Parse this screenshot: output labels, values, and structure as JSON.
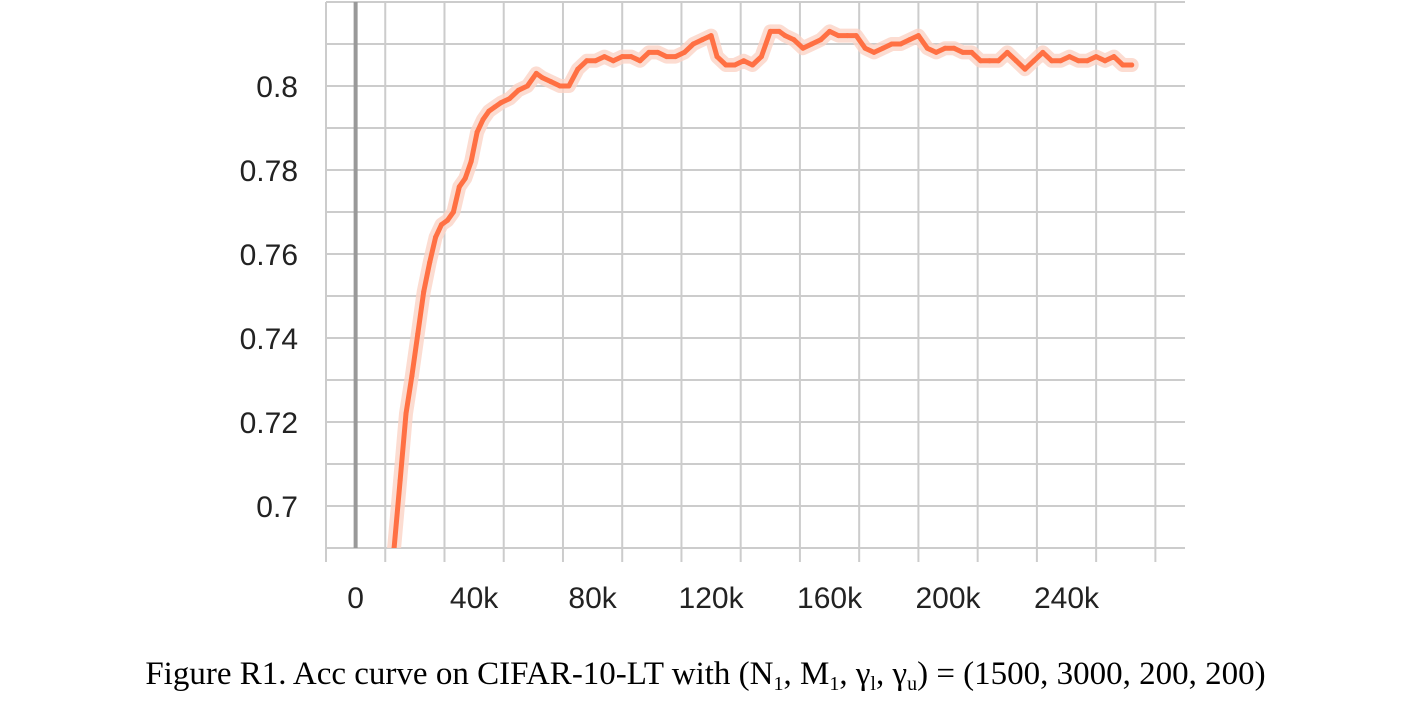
{
  "chart_data": {
    "type": "line",
    "title": "",
    "xlabel": "",
    "ylabel": "",
    "xlim": [
      -10000,
      280000
    ],
    "ylim": [
      0.69,
      0.82
    ],
    "x_ticks": [
      0,
      40000,
      80000,
      120000,
      160000,
      200000,
      240000
    ],
    "x_tick_labels": [
      "0",
      "40k",
      "80k",
      "120k",
      "160k",
      "200k",
      "240k"
    ],
    "y_ticks": [
      0.7,
      0.72,
      0.74,
      0.76,
      0.78,
      0.8
    ],
    "y_tick_labels": [
      "0.7",
      "0.72",
      "0.74",
      "0.76",
      "0.78",
      "0.8"
    ],
    "grid": true,
    "colors": {
      "smoothed": "#ff7043",
      "raw": "#fbd3c5",
      "zero_line": "#999999",
      "grid": "#cccccc"
    },
    "series": [
      {
        "x": [
          13000,
          15000,
          17000,
          19000,
          21000,
          23000,
          25000,
          27000,
          29000,
          31000,
          33000,
          35000,
          37000,
          39000,
          41000,
          43000,
          45000,
          47000,
          49000,
          52000,
          55000,
          58000,
          61000,
          63000,
          66000,
          69000,
          72000,
          75000,
          78000,
          81000,
          84000,
          87000,
          90000,
          93000,
          96000,
          99000,
          102000,
          105000,
          108000,
          111000,
          114000,
          117000,
          120000,
          122000,
          125000,
          128000,
          131000,
          134000,
          137000,
          140000,
          143000,
          145000,
          148000,
          151000,
          154000,
          157000,
          160000,
          163000,
          166000,
          169000,
          172000,
          175000,
          178000,
          181000,
          184000,
          187000,
          190000,
          193000,
          196000,
          199000,
          202000,
          205000,
          208000,
          211000,
          214000,
          217000,
          220000,
          223000,
          226000,
          229000,
          232000,
          235000,
          238000,
          241000,
          244000,
          247000,
          250000,
          253000,
          256000,
          259000,
          262000
        ],
        "values": [
          0.69,
          0.706,
          0.722,
          0.731,
          0.741,
          0.751,
          0.758,
          0.764,
          0.767,
          0.768,
          0.77,
          0.776,
          0.778,
          0.782,
          0.789,
          0.792,
          0.794,
          0.795,
          0.796,
          0.797,
          0.799,
          0.8,
          0.803,
          0.802,
          0.801,
          0.8,
          0.8,
          0.804,
          0.806,
          0.806,
          0.807,
          0.806,
          0.807,
          0.807,
          0.806,
          0.808,
          0.808,
          0.807,
          0.807,
          0.808,
          0.81,
          0.811,
          0.812,
          0.807,
          0.805,
          0.805,
          0.806,
          0.805,
          0.807,
          0.813,
          0.813,
          0.812,
          0.811,
          0.809,
          0.81,
          0.811,
          0.813,
          0.812,
          0.812,
          0.812,
          0.809,
          0.808,
          0.809,
          0.81,
          0.81,
          0.811,
          0.812,
          0.809,
          0.808,
          0.809,
          0.809,
          0.808,
          0.808,
          0.806,
          0.806,
          0.806,
          0.808,
          0.806,
          0.804,
          0.806,
          0.808,
          0.806,
          0.806,
          0.807,
          0.806,
          0.806,
          0.807,
          0.806,
          0.807,
          0.805,
          0.805
        ]
      }
    ]
  },
  "caption": {
    "prefix": "Figure R1. Acc curve on CIFAR-10-LT with (N",
    "sub1": "1",
    "mid1": ", M",
    "sub2": "1",
    "mid2": ", γ",
    "sub3": "l",
    "mid3": ", γ",
    "sub4": "u",
    "suffix": ") = (1500, 3000, 200, 200)"
  }
}
